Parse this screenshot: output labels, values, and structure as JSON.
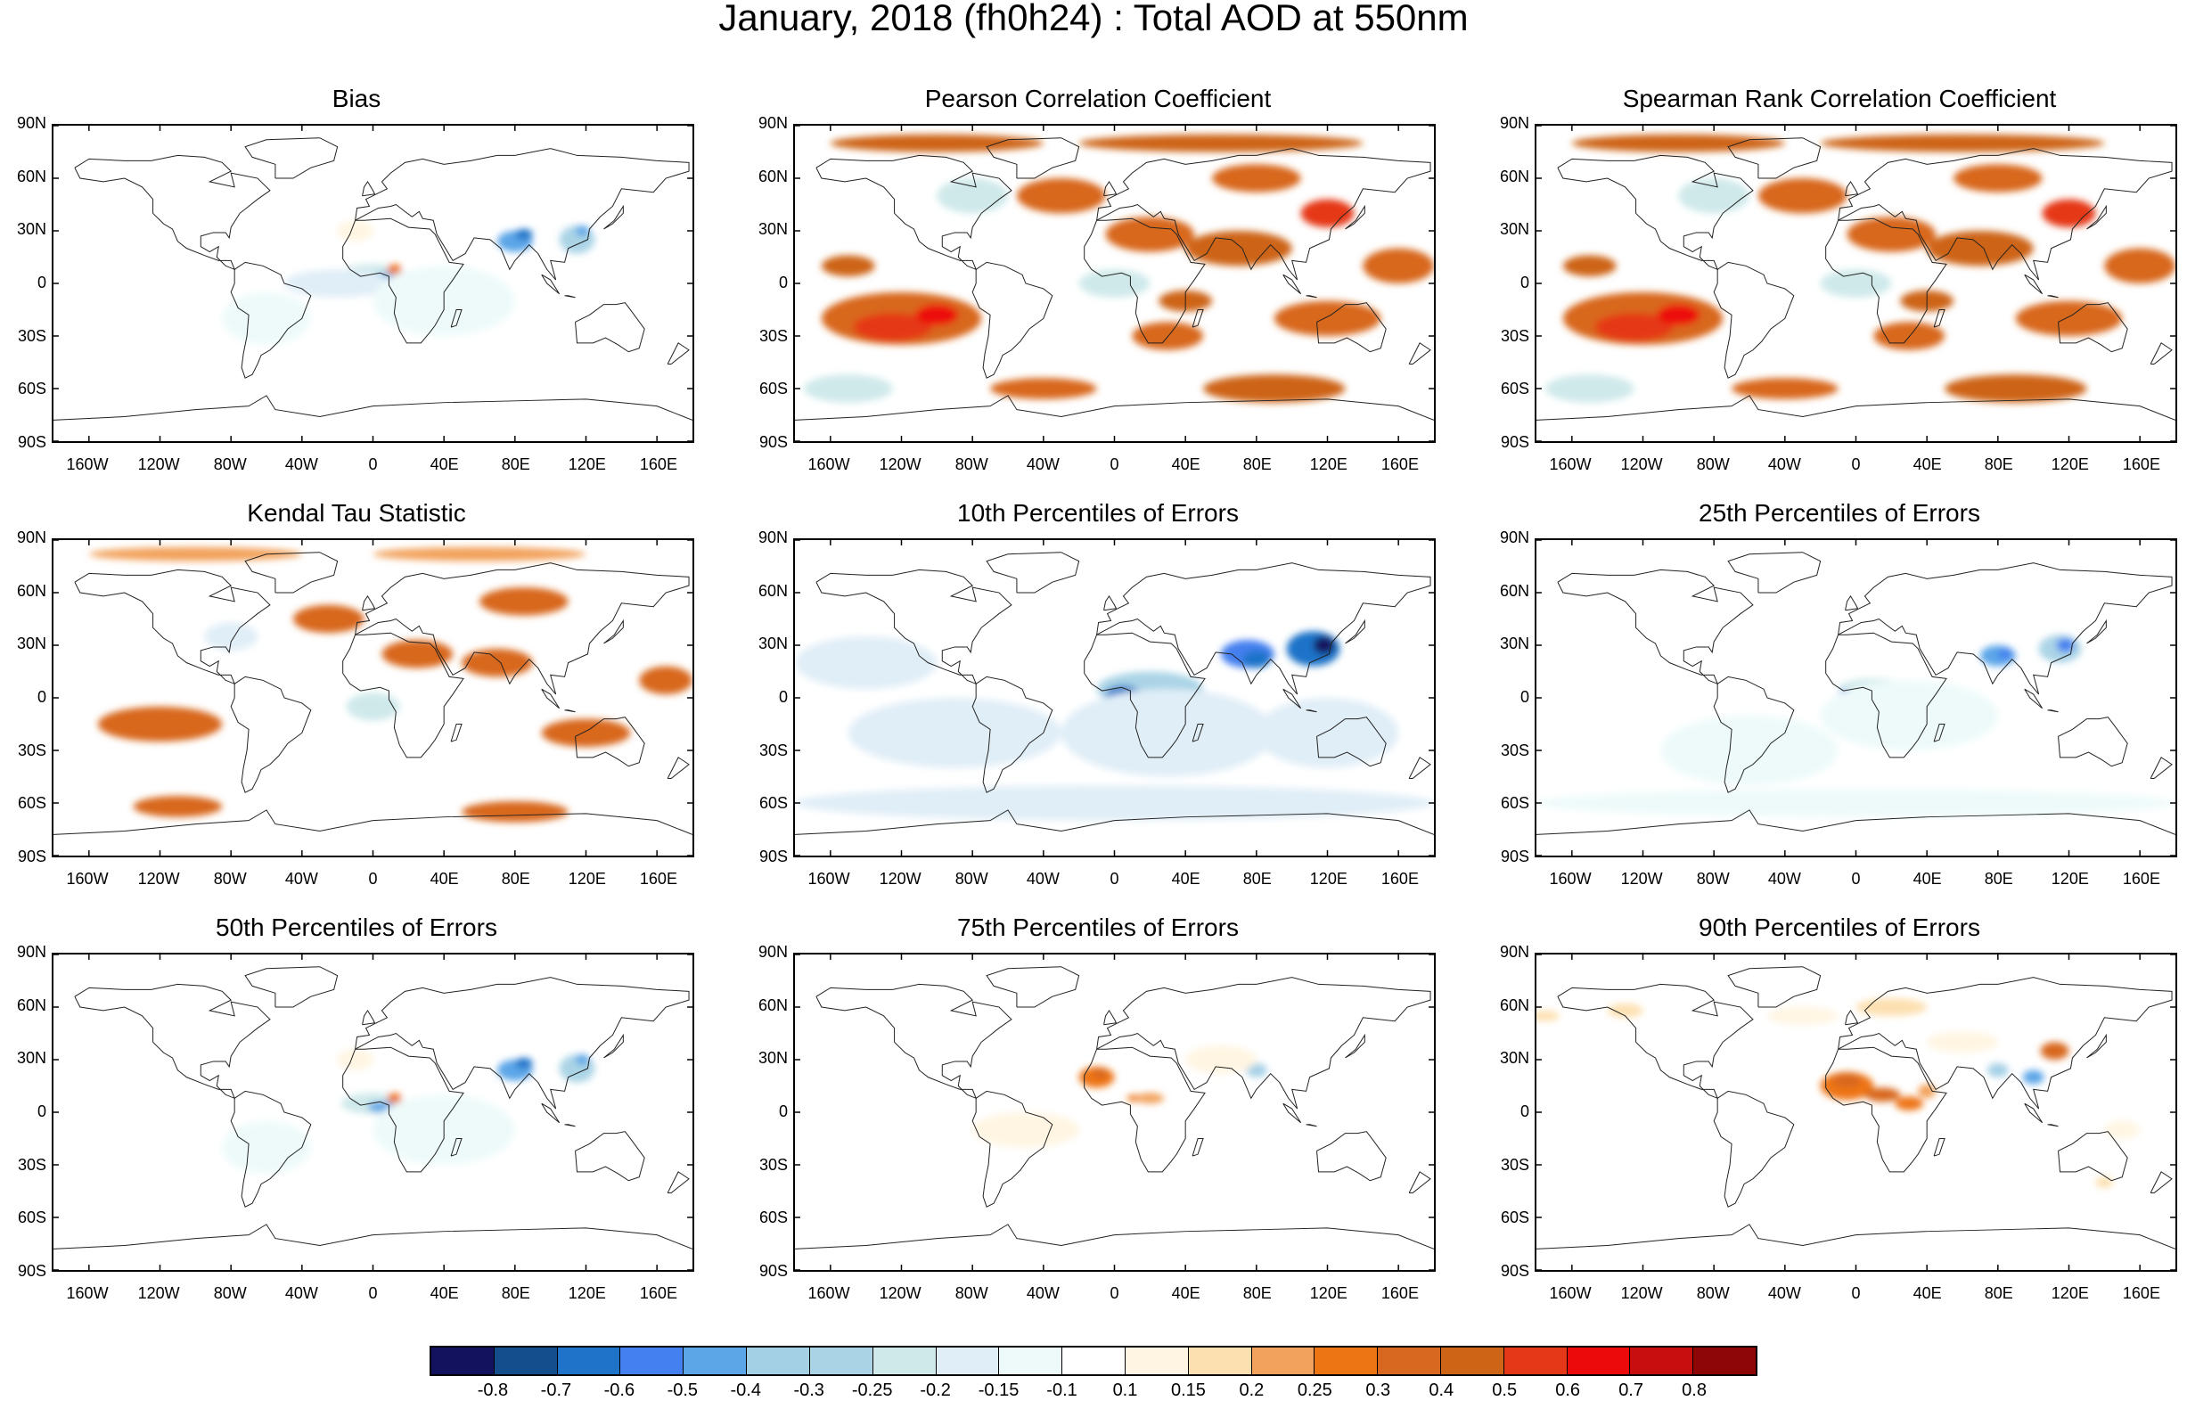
{
  "title": "January, 2018 (fh0h24) : Total AOD at 550nm",
  "panels": [
    {
      "title": "Bias",
      "kind": "bias"
    },
    {
      "title": "Pearson Correlation Coefficient",
      "kind": "corr"
    },
    {
      "title": "Spearman Rank Correlation Coefficient",
      "kind": "corr"
    },
    {
      "title": "Kendal Tau Statistic",
      "kind": "kendall"
    },
    {
      "title": "10th Percentiles of Errors",
      "kind": "p10"
    },
    {
      "title": "25th Percentiles of Errors",
      "kind": "p25"
    },
    {
      "title": "50th Percentiles of Errors",
      "kind": "p50"
    },
    {
      "title": "75th Percentiles of Errors",
      "kind": "p75"
    },
    {
      "title": "90th Percentiles of Errors",
      "kind": "p90"
    }
  ],
  "lat_labels": [
    "90N",
    "60N",
    "30N",
    "0",
    "30S",
    "60S",
    "90S"
  ],
  "lon_labels": [
    "160W",
    "120W",
    "80W",
    "40W",
    "0",
    "40E",
    "80E",
    "120E",
    "160E"
  ],
  "colorbar": {
    "labels": [
      "-0.8",
      "-0.7",
      "-0.6",
      "-0.5",
      "-0.4",
      "-0.3",
      "-0.25",
      "-0.2",
      "-0.15",
      "-0.1",
      "0.1",
      "0.15",
      "0.2",
      "0.25",
      "0.3",
      "0.4",
      "0.5",
      "0.6",
      "0.7",
      "0.8"
    ],
    "colors": [
      "#12125e",
      "#154e8c",
      "#1f73c9",
      "#4580f0",
      "#5ca6e8",
      "#a4d0e6",
      "#aad4e6",
      "#cfe9ea",
      "#e0eef7",
      "#eefafa",
      "#ffffff",
      "#fff5e2",
      "#fde0b0",
      "#f2a25c",
      "#ee7513",
      "#d8681f",
      "#cd6416",
      "#e53818",
      "#ec0b0b",
      "#c80e0e",
      "#8e0606"
    ]
  }
}
